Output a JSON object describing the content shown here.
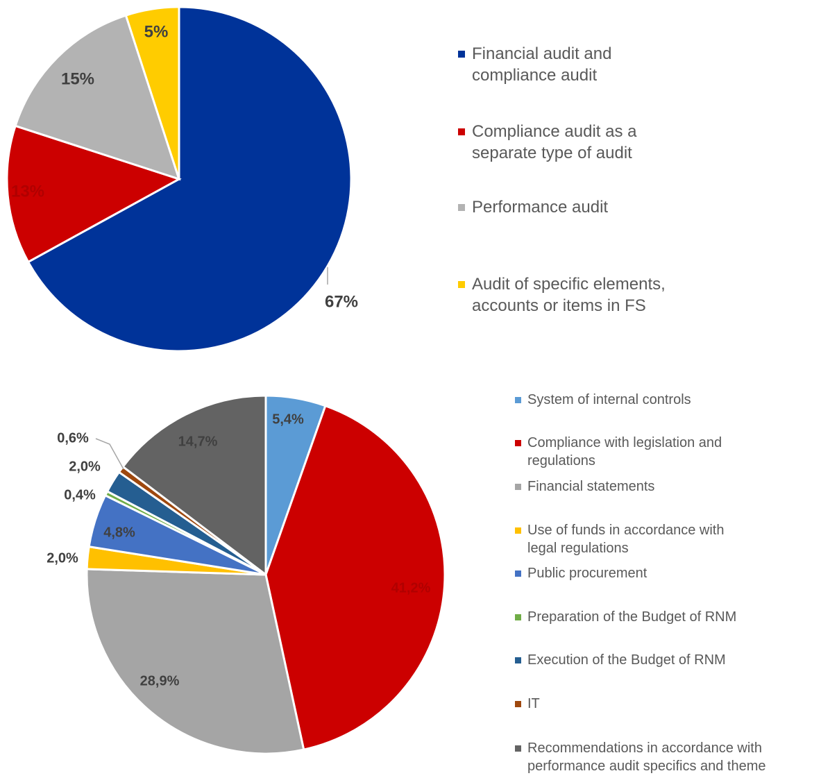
{
  "chart_data": [
    {
      "type": "pie",
      "categories": [
        "Financial audit and compliance audit",
        "Compliance audit as a separate type of audit",
        "Performance audit",
        "Audit of specific elements, accounts or items in FS"
      ],
      "values": [
        67,
        13,
        15,
        5
      ],
      "value_labels": [
        "67%",
        "13%",
        "15%",
        "5%"
      ],
      "colors": [
        "#003399",
        "#cc0000",
        "#b3b3b3",
        "#ffcc00"
      ]
    },
    {
      "type": "pie",
      "categories": [
        "System of internal controls",
        "Compliance with legislation and regulations",
        "Financial statements",
        "Use of funds in accordance with legal regulations",
        "Public procurement",
        "Preparation of the Budget of RNM",
        "Execution of the Budget of RNM",
        "IT",
        "Recommendations in accordance with performance audit specifics and theme"
      ],
      "values": [
        5.4,
        41.2,
        28.9,
        2.0,
        4.8,
        0.4,
        2.0,
        0.6,
        14.7
      ],
      "value_labels": [
        "5,4%",
        "41,2%",
        "28,9%",
        "2,0%",
        "4,8%",
        "0,4%",
        "2,0%",
        "0,6%",
        "14,7%"
      ],
      "colors": [
        "#5b9bd5",
        "#cc0000",
        "#a5a5a5",
        "#ffc000",
        "#4472c4",
        "#70ad47",
        "#255e91",
        "#9e480e",
        "#636363"
      ]
    }
  ]
}
